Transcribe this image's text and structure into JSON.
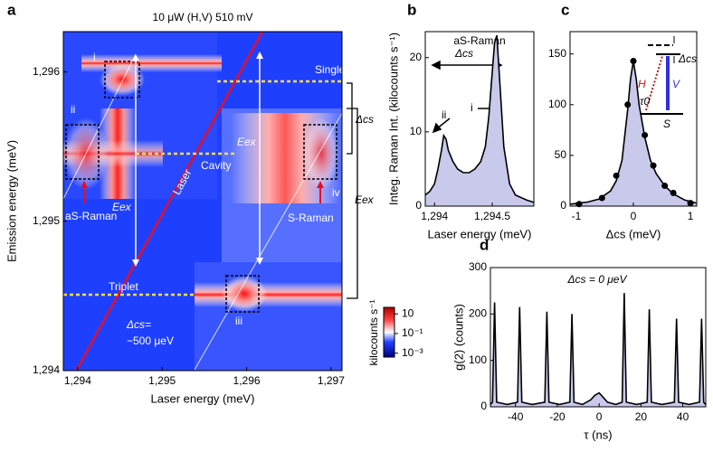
{
  "chart_data": [
    {
      "type": "heatmap",
      "panel": "a",
      "title": "10 μW (H,V) 510 mV",
      "xlabel": "Laser energy (meV)",
      "ylabel": "Emission energy (meV)",
      "xlim": [
        1293.83,
        1297.13
      ],
      "ylim": [
        1294,
        1296.27
      ],
      "xticks": [
        {
          "value": 1294,
          "label": "1,294"
        },
        {
          "value": 1295,
          "label": "1,295"
        },
        {
          "value": 1296,
          "label": "1,296"
        },
        {
          "value": 1297,
          "label": "1,297"
        }
      ],
      "yticks": [
        {
          "value": 1294,
          "label": "1,294"
        },
        {
          "value": 1295,
          "label": "1,295"
        },
        {
          "value": 1296,
          "label": "1,296"
        }
      ],
      "annotations": [
        "Singlet",
        "Cavity",
        "Triplet",
        "Laser",
        "aS-Raman",
        "S-Raman",
        "Eex",
        "Eex",
        "i",
        "ii",
        "iii",
        "iv",
        "Δcs=",
        "−500 μeV",
        "Δcs",
        "Eex"
      ],
      "colorbar": {
        "label": "kilocounts s⁻¹",
        "log": true,
        "lim": [
          0.0004,
          46
        ],
        "ticks": [
          10,
          {
            "value": 0.1,
            "label": "10⁻¹"
          },
          {
            "value": 0.001,
            "label": "10⁻³"
          }
        ]
      }
    },
    {
      "type": "line",
      "panel": "b",
      "xlabel": "Laser energy (meV)",
      "ylabel": "Integ. Raman Int. (kilocounts s⁻¹)",
      "xlim": [
        1293.92,
        1294.86
      ],
      "ylim": [
        0,
        23.5
      ],
      "xticks": [
        {
          "value": 1294,
          "label": "1,294"
        },
        {
          "value": 1294.5,
          "label": "1,294.5"
        }
      ],
      "yticks": [
        0,
        10,
        20
      ],
      "annotations": [
        "aS-Raman",
        "Δcs",
        "ii",
        "i"
      ],
      "series": [
        {
          "color": "#000000",
          "fill": "#c9c9ec",
          "x": [
            1293.92,
            1293.96,
            1294.0,
            1294.03,
            1294.06,
            1294.08,
            1294.1,
            1294.12,
            1294.16,
            1294.2,
            1294.25,
            1294.3,
            1294.35,
            1294.4,
            1294.44,
            1294.47,
            1294.5,
            1294.52,
            1294.54,
            1294.56,
            1294.6,
            1294.65,
            1294.7,
            1294.8,
            1294.86
          ],
          "values": [
            1.5,
            2,
            3,
            5,
            7.5,
            9.5,
            9,
            7.5,
            6,
            5,
            4.5,
            4.5,
            5,
            6,
            8,
            12,
            18,
            22,
            23,
            18,
            8,
            3,
            1.5,
            0.8,
            0.5
          ]
        }
      ]
    },
    {
      "type": "line",
      "panel": "c",
      "xlabel": "Δcs (meV)",
      "xlim": [
        -1.11,
        1.11
      ],
      "ylim": [
        0,
        172
      ],
      "xticks": [
        -1,
        0,
        1
      ],
      "yticks": [
        0,
        50,
        100,
        150
      ],
      "annotations": [
        "Δcs",
        "H",
        "V",
        "τ0",
        "S"
      ],
      "series": [
        {
          "color": "#000000",
          "fill": "#c9c9ec",
          "x": [
            -1.1,
            -0.8,
            -0.6,
            -0.4,
            -0.3,
            -0.2,
            -0.1,
            -0.05,
            0,
            0.05,
            0.1,
            0.2,
            0.3,
            0.4,
            0.55,
            0.7,
            0.9,
            1.1
          ],
          "values": [
            2,
            4,
            7,
            15,
            25,
            45,
            95,
            125,
            143,
            125,
            100,
            68,
            45,
            32,
            20,
            12,
            6,
            3
          ]
        },
        {
          "type": "scatter",
          "color": "#000000",
          "x": [
            -0.95,
            -0.55,
            -0.3,
            -0.1,
            0,
            0.2,
            0.35,
            0.55,
            0.7,
            1.0
          ],
          "values": [
            2,
            8,
            30,
            100,
            143,
            70,
            40,
            20,
            13,
            3
          ]
        }
      ]
    },
    {
      "type": "line",
      "panel": "d",
      "xlabel": "τ (ns)",
      "ylabel": "g(2) (counts)",
      "xlim": [
        -52,
        51
      ],
      "ylim": [
        0,
        300
      ],
      "xticks": [
        -40,
        -20,
        0,
        20,
        40
      ],
      "yticks": [
        0,
        100,
        200,
        300
      ],
      "annotations": [
        "Δcs = 0 μeV"
      ],
      "series": [
        {
          "color": "#000000",
          "fill": "#c9c9ec",
          "x": [
            -52,
            -51,
            -50,
            -49,
            -44,
            -39,
            -38,
            -37,
            -32,
            -26,
            -25,
            -24,
            -19,
            -14,
            -13,
            -12,
            -8,
            -4,
            -2,
            0,
            2,
            4,
            8,
            11,
            12,
            13,
            18,
            23,
            24,
            25,
            30,
            36,
            37,
            38,
            43,
            48,
            49,
            50,
            51
          ],
          "values": [
            5,
            10,
            225,
            10,
            5,
            10,
            215,
            10,
            5,
            10,
            205,
            10,
            5,
            10,
            200,
            10,
            5,
            15,
            25,
            30,
            20,
            10,
            5,
            10,
            245,
            10,
            5,
            10,
            210,
            10,
            5,
            10,
            190,
            10,
            5,
            10,
            190,
            10,
            5
          ]
        }
      ]
    }
  ]
}
